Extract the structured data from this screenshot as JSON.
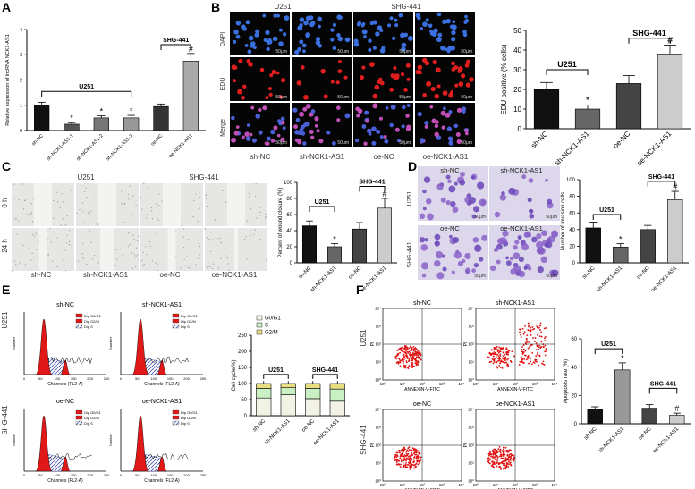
{
  "panels": {
    "A": {
      "letter": "A",
      "group_label": "U251",
      "group_label2": "SHG-441",
      "chart_data": {
        "type": "bar",
        "ylabel": "Relative expression of lncRNA NCK1-AS1",
        "ylim": [
          0,
          4
        ],
        "yticks": [
          0,
          1,
          2,
          3,
          4
        ],
        "categories": [
          "sh-NC",
          "sh-NCK1-AS1-1",
          "sh-NCK1-AS1-2",
          "sh-NCK1-AS1-3",
          "oe-NC",
          "oe-NCK1-AS1"
        ],
        "values": [
          1.0,
          0.25,
          0.5,
          0.5,
          0.95,
          2.75
        ],
        "errors": [
          0.12,
          0.06,
          0.08,
          0.1,
          0.1,
          0.3
        ],
        "colors": [
          "#111111",
          "#555555",
          "#777777",
          "#999999",
          "#333333",
          "#aaaaaa"
        ],
        "annotations": [
          "",
          "*",
          "*",
          "*",
          "",
          "#"
        ]
      }
    },
    "B": {
      "letter": "B",
      "col_labels": [
        "U251",
        "SHG-441"
      ],
      "row_labels": [
        "DAPI",
        "EDU",
        "Merge"
      ],
      "scale": "50μm",
      "bottom_labels": [
        "sh-NC",
        "sh-NCK1-AS1",
        "oe-NC",
        "oe-NCK1-AS1"
      ],
      "group_label": "U251",
      "group_label2": "SHG-441",
      "chart_data": {
        "type": "bar",
        "ylabel": "EDU positive (% cells)",
        "ylim": [
          0,
          50
        ],
        "yticks": [
          0,
          10,
          20,
          30,
          40,
          50
        ],
        "categories": [
          "sh-NC",
          "sh-NCK1-AS1",
          "oe-NC",
          "oe-NCK1-AS1"
        ],
        "values": [
          20,
          10,
          23,
          38
        ],
        "errors": [
          3.5,
          2,
          4,
          4.5
        ],
        "colors": [
          "#111111",
          "#666666",
          "#444444",
          "#cccccc"
        ],
        "annotations": [
          "",
          "*",
          "",
          "#"
        ]
      }
    },
    "C": {
      "letter": "C",
      "col_labels": [
        "U251",
        "SHG-441"
      ],
      "row_labels": [
        "0 h",
        "24 h"
      ],
      "bottom_labels": [
        "sh-NC",
        "sh-NCK1-AS1",
        "oe-NC",
        "oe-NCK1-AS1"
      ],
      "group_label": "U251",
      "group_label2": "SHG-441",
      "chart_data": {
        "type": "bar",
        "ylabel": "Percent of wound closure (%)",
        "ylim": [
          0,
          100
        ],
        "yticks": [
          0,
          20,
          40,
          60,
          80,
          100
        ],
        "categories": [
          "sh-NC",
          "sh-NCK1-AS1",
          "oe-NC",
          "oe-NCK1-AS1"
        ],
        "values": [
          46,
          20,
          42,
          68
        ],
        "errors": [
          6,
          4,
          8,
          12
        ],
        "colors": [
          "#111111",
          "#666666",
          "#444444",
          "#cccccc"
        ],
        "annotations": [
          "",
          "*",
          "",
          "#"
        ]
      }
    },
    "D": {
      "letter": "D",
      "col_labels": [
        "sh-NC",
        "sh-NCK1-AS1",
        "oe-NC",
        "oe-NCK1-AS1"
      ],
      "row_labels": [
        "U251",
        "SHG-441"
      ],
      "scale": "50μm",
      "group_label": "U251",
      "group_label2": "SHG-441",
      "chart_data": {
        "type": "bar",
        "ylabel": "Number of invasion cells",
        "ylim": [
          0,
          100
        ],
        "yticks": [
          0,
          20,
          40,
          60,
          80,
          100
        ],
        "categories": [
          "sh-NC",
          "sh-NCK1-AS1",
          "oe-NC",
          "oe-NCK1-AS1"
        ],
        "values": [
          42,
          19,
          40,
          76
        ],
        "errors": [
          7,
          4,
          5,
          10
        ],
        "colors": [
          "#111111",
          "#666666",
          "#444444",
          "#cccccc"
        ],
        "annotations": [
          "",
          "*",
          "",
          "#"
        ]
      }
    },
    "E": {
      "letter": "E",
      "row_labels": [
        "U251",
        "SHG-441"
      ],
      "plot_titles": [
        "sh-NC",
        "sh-NCK1-AS1",
        "oe-NC",
        "oe-NCK1-AS1"
      ],
      "xlabel": "Channels (FL2-A)",
      "ylabel": "Number",
      "xticks": [
        "0",
        "50",
        "100",
        "150",
        "200",
        "250"
      ],
      "legend": [
        "Dip G0/G1",
        "Dip G2/M",
        "Dip S"
      ],
      "group_label": "U251",
      "group_label2": "SHG-441",
      "chart_data": {
        "type": "bar",
        "stacked": true,
        "ylabel": "Cell cycle(%)",
        "ylim": [
          0,
          250
        ],
        "yticks": [
          0,
          50,
          100,
          150,
          200,
          250
        ],
        "categories": [
          "sh-NC",
          "sh-NCK1-AS1",
          "oe-NC",
          "oe-NCK1-AS1"
        ],
        "series": [
          {
            "name": "G0/G1",
            "values": [
              55,
              65,
              53,
              45
            ],
            "color": "#f2f2e6"
          },
          {
            "name": "S",
            "values": [
              30,
              22,
              32,
              38
            ],
            "color": "#c9f0c2"
          },
          {
            "name": "G2/M",
            "values": [
              15,
              13,
              15,
              17
            ],
            "color": "#e8e080"
          }
        ],
        "legend_position": "top-left"
      }
    },
    "F": {
      "letter": "F",
      "row_labels": [
        "U251",
        "SHG-441"
      ],
      "plot_titles": [
        "sh-NC",
        "sh-NCK1-AS1",
        "oe-NC",
        "oe-NCK1-AS1"
      ],
      "xlabel": "ANNEXIN-V-FITC",
      "ylabel": "PI",
      "ticks": [
        "10⁰",
        "10¹",
        "10²",
        "10³",
        "10⁴"
      ],
      "group_label": "U251",
      "group_label2": "SHG-441",
      "chart_data": {
        "type": "bar",
        "ylabel": "Apoptosis rate (%)",
        "ylim": [
          0,
          60
        ],
        "yticks": [
          0,
          20,
          40,
          60
        ],
        "categories": [
          "sh-NC",
          "sh-NCK1-AS1",
          "oe-NC",
          "oe-NCK1-AS1"
        ],
        "values": [
          10,
          38,
          11,
          6
        ],
        "errors": [
          2,
          5,
          2.5,
          1.5
        ],
        "colors": [
          "#111111",
          "#999999",
          "#444444",
          "#cccccc"
        ],
        "annotations": [
          "",
          "*",
          "",
          "#"
        ]
      }
    }
  }
}
